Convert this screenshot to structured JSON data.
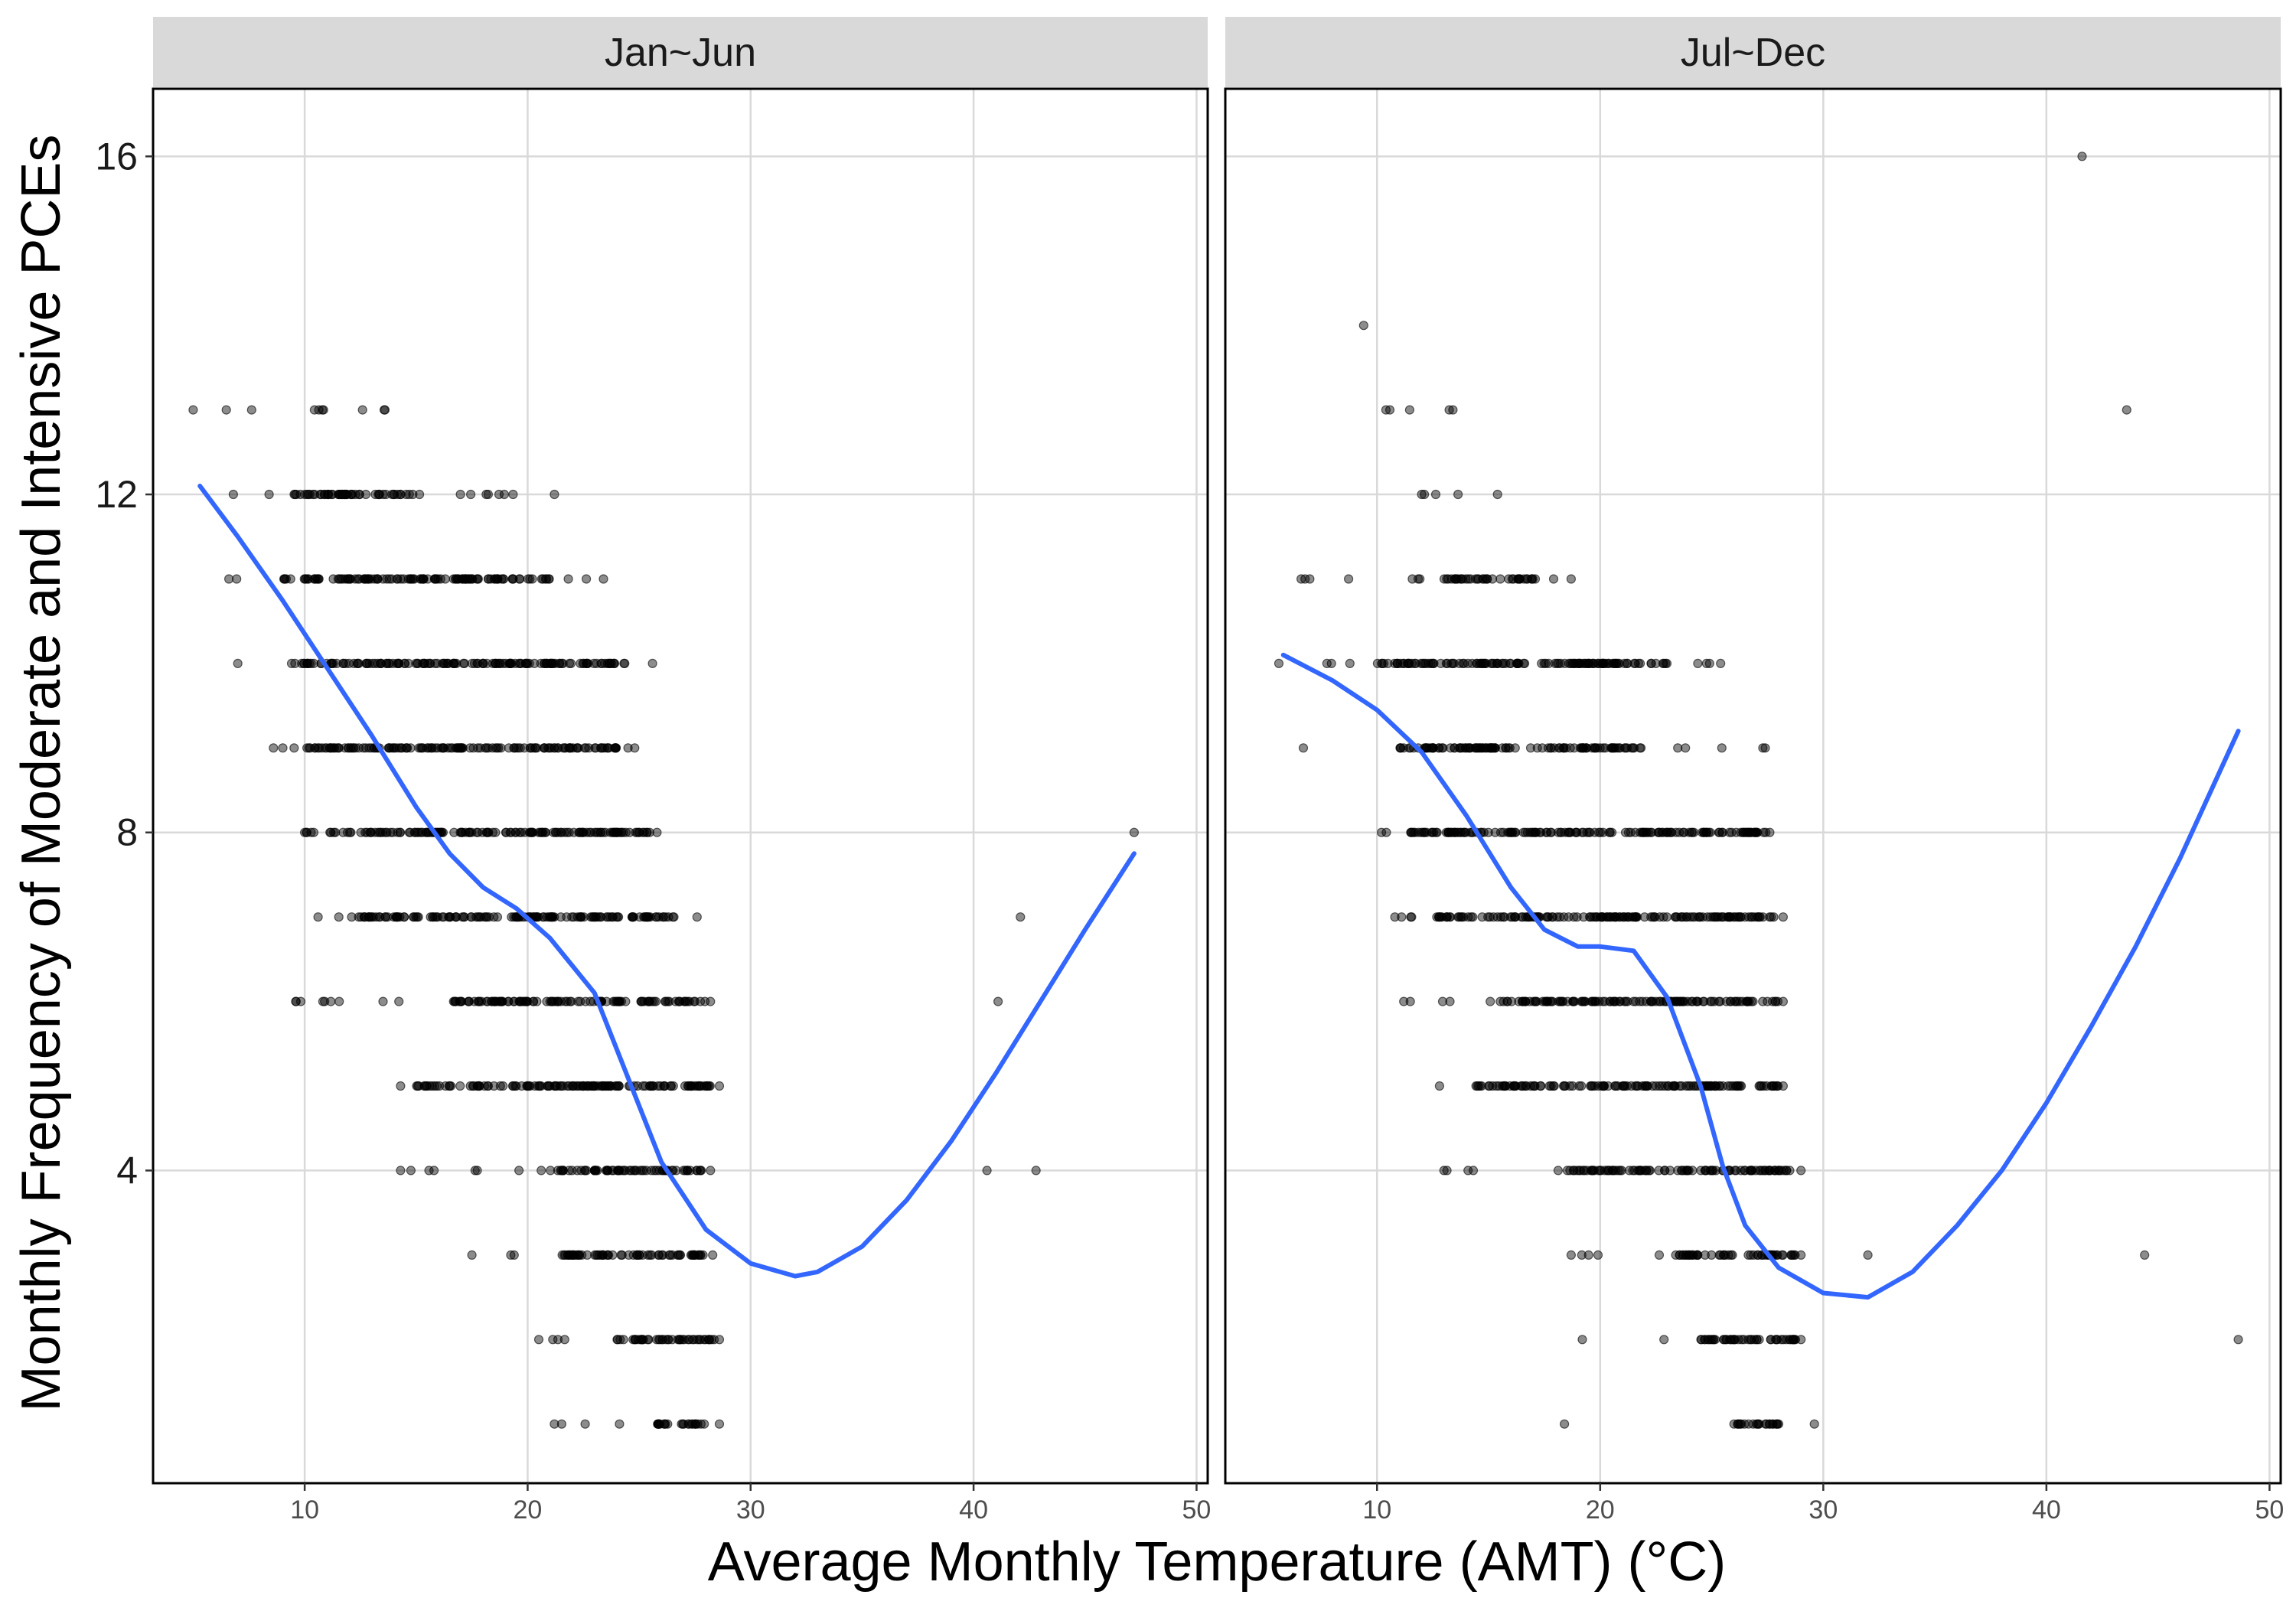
{
  "chart_data": {
    "type": "scatter",
    "xlabel": "Average Monthly Temperature (AMT) (°C)",
    "ylabel": "Monthly Frequency of Moderate and Intensive PCEs",
    "xlim": [
      3.2,
      50.5
    ],
    "ylim": [
      0.3,
      16.8
    ],
    "x_ticks": [
      10,
      20,
      30,
      40,
      50
    ],
    "y_ticks": [
      4,
      8,
      12,
      16
    ],
    "grid": true,
    "colors": {
      "points": "#000000",
      "smooth": "#3366ff",
      "strip_bg": "#d9d9d9",
      "grid": "#d9d9d9",
      "panel_border": "#000000"
    },
    "panels": [
      {
        "label": "Jan~Jun",
        "point_bands": [
          {
            "y": 13,
            "xmin": 5.0,
            "xmax": 13.6,
            "dense_from": null,
            "dense_to": null
          },
          {
            "y": 12,
            "xmin": 6.8,
            "xmax": 21.2,
            "dense_from": 9.5,
            "dense_to": 15.0
          },
          {
            "y": 11,
            "xmin": 6.6,
            "xmax": 23.4,
            "dense_from": 9.0,
            "dense_to": 21.0
          },
          {
            "y": 10,
            "xmin": 7.0,
            "xmax": 25.6,
            "dense_from": 9.5,
            "dense_to": 24.0
          },
          {
            "y": 9,
            "xmin": 8.6,
            "xmax": 24.8,
            "dense_from": 10.0,
            "dense_to": 24.5
          },
          {
            "y": 8,
            "xmin": 10.0,
            "xmax": 25.8,
            "dense_from": 11.0,
            "dense_to": 25.5
          },
          {
            "y": 7,
            "xmin": 10.6,
            "xmax": 27.6,
            "dense_from": 12.5,
            "dense_to": 27.0
          },
          {
            "y": 6,
            "xmin": 9.6,
            "xmax": 28.2,
            "dense_from": 16.5,
            "dense_to": 28.0
          },
          {
            "y": 5,
            "xmin": 14.3,
            "xmax": 28.6,
            "dense_from": 15.0,
            "dense_to": 28.5
          },
          {
            "y": 4,
            "xmin": 14.3,
            "xmax": 28.2,
            "dense_from": 21.0,
            "dense_to": 28.0
          },
          {
            "y": 3,
            "xmin": 17.5,
            "xmax": 28.3,
            "dense_from": 21.5,
            "dense_to": 28.0
          },
          {
            "y": 2,
            "xmin": 20.5,
            "xmax": 28.6,
            "dense_from": 24.0,
            "dense_to": 28.5
          },
          {
            "y": 1,
            "xmin": 21.2,
            "xmax": 28.6,
            "dense_from": 25.8,
            "dense_to": 28.0
          }
        ],
        "outliers": [
          {
            "x": 47.2,
            "y": 8
          },
          {
            "x": 42.1,
            "y": 7
          },
          {
            "x": 41.1,
            "y": 6
          },
          {
            "x": 40.6,
            "y": 4
          },
          {
            "x": 42.8,
            "y": 4
          }
        ],
        "smooth": {
          "x": [
            5.3,
            7.0,
            9.0,
            11.0,
            13.0,
            15.0,
            16.5,
            18.0,
            19.5,
            21.0,
            23.0,
            24.5,
            26.0,
            28.0,
            30.0,
            32.0,
            33.0,
            35.0,
            37.0,
            39.0,
            41.0,
            43.0,
            45.0,
            47.2
          ],
          "y": [
            12.1,
            11.5,
            10.75,
            9.95,
            9.15,
            8.3,
            7.75,
            7.35,
            7.1,
            6.75,
            6.1,
            5.1,
            4.1,
            3.3,
            2.9,
            2.75,
            2.8,
            3.1,
            3.65,
            4.35,
            5.15,
            6.0,
            6.85,
            7.75
          ]
        }
      },
      {
        "label": "Jul~Dec",
        "point_bands": [
          {
            "y": 16,
            "xmin": 41.6,
            "xmax": 41.6,
            "dense_from": null,
            "dense_to": null
          },
          {
            "y": 14,
            "xmin": 9.4,
            "xmax": 9.4,
            "dense_from": null,
            "dense_to": null
          },
          {
            "y": 13,
            "xmin": 10.4,
            "xmax": 13.4,
            "dense_from": null,
            "dense_to": null
          },
          {
            "y": 12,
            "xmin": 12.0,
            "xmax": 15.4,
            "dense_from": null,
            "dense_to": null
          },
          {
            "y": 11,
            "xmin": 6.6,
            "xmax": 18.7,
            "dense_from": 13.0,
            "dense_to": 17.0
          },
          {
            "y": 10,
            "xmin": 5.6,
            "xmax": 25.4,
            "dense_from": 10.0,
            "dense_to": 23.0
          },
          {
            "y": 9,
            "xmin": 6.7,
            "xmax": 27.4,
            "dense_from": 11.0,
            "dense_to": 22.0
          },
          {
            "y": 8,
            "xmin": 10.2,
            "xmax": 27.6,
            "dense_from": 11.5,
            "dense_to": 27.5
          },
          {
            "y": 7,
            "xmin": 10.8,
            "xmax": 28.2,
            "dense_from": 12.5,
            "dense_to": 28.0
          },
          {
            "y": 6,
            "xmin": 11.2,
            "xmax": 28.2,
            "dense_from": 15.5,
            "dense_to": 28.0
          },
          {
            "y": 5,
            "xmin": 12.8,
            "xmax": 28.2,
            "dense_from": 15.0,
            "dense_to": 28.0
          },
          {
            "y": 4,
            "xmin": 13.0,
            "xmax": 29.0,
            "dense_from": 18.5,
            "dense_to": 28.5
          },
          {
            "y": 3,
            "xmin": 18.7,
            "xmax": 29.0,
            "dense_from": 23.5,
            "dense_to": 28.8
          },
          {
            "y": 2,
            "xmin": 19.2,
            "xmax": 29.0,
            "dense_from": 24.5,
            "dense_to": 28.8
          },
          {
            "y": 1,
            "xmin": 26.0,
            "xmax": 28.0,
            "dense_from": 26.0,
            "dense_to": 28.0
          }
        ],
        "outliers": [
          {
            "x": 43.6,
            "y": 13
          },
          {
            "x": 32.0,
            "y": 3
          },
          {
            "x": 44.4,
            "y": 3
          },
          {
            "x": 48.6,
            "y": 2
          },
          {
            "x": 18.4,
            "y": 1
          },
          {
            "x": 29.6,
            "y": 1
          }
        ],
        "smooth": {
          "x": [
            5.8,
            8.0,
            10.0,
            12.0,
            14.0,
            16.0,
            17.5,
            19.0,
            20.0,
            21.5,
            23.0,
            24.5,
            25.5,
            26.5,
            28.0,
            30.0,
            32.0,
            34.0,
            36.0,
            38.0,
            40.0,
            42.0,
            44.0,
            46.0,
            48.6
          ],
          "y": [
            10.1,
            9.8,
            9.45,
            8.95,
            8.2,
            7.35,
            6.85,
            6.65,
            6.65,
            6.6,
            6.05,
            5.0,
            4.05,
            3.35,
            2.85,
            2.55,
            2.5,
            2.8,
            3.35,
            4.0,
            4.8,
            5.7,
            6.65,
            7.7,
            9.2
          ]
        }
      }
    ]
  }
}
